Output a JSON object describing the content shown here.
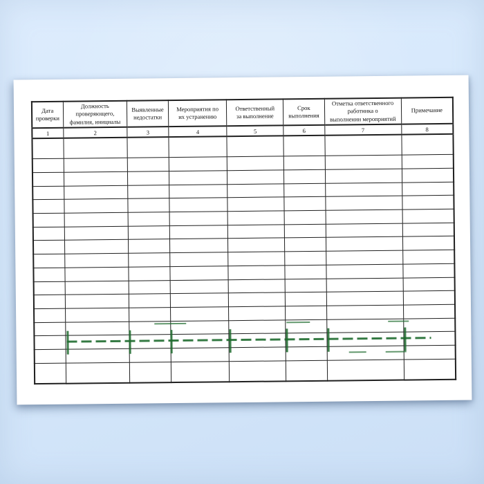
{
  "colors": {
    "canvas_background": "#d6e8fb",
    "page_background": "#ffffff",
    "table_border": "#1f1f1f",
    "watermark_green": "#1e6b2e"
  },
  "table": {
    "columns": [
      {
        "number": "1",
        "label": "Дата\nпроверки"
      },
      {
        "number": "2",
        "label": "Должность\nпроверяющего,\nфамилия, инициалы"
      },
      {
        "number": "3",
        "label": "Выявленные\nнедостатки"
      },
      {
        "number": "4",
        "label": "Мероприятия по\nих устранению"
      },
      {
        "number": "5",
        "label": "Ответственный\nза выполнение"
      },
      {
        "number": "6",
        "label": "Срок\nвыполнения"
      },
      {
        "number": "7",
        "label": "Отметка ответственного\nработника о\nвыполнении мероприятий"
      },
      {
        "number": "8",
        "label": "Примечание"
      }
    ],
    "empty_row_count": 17,
    "empty_cell_value": ""
  }
}
